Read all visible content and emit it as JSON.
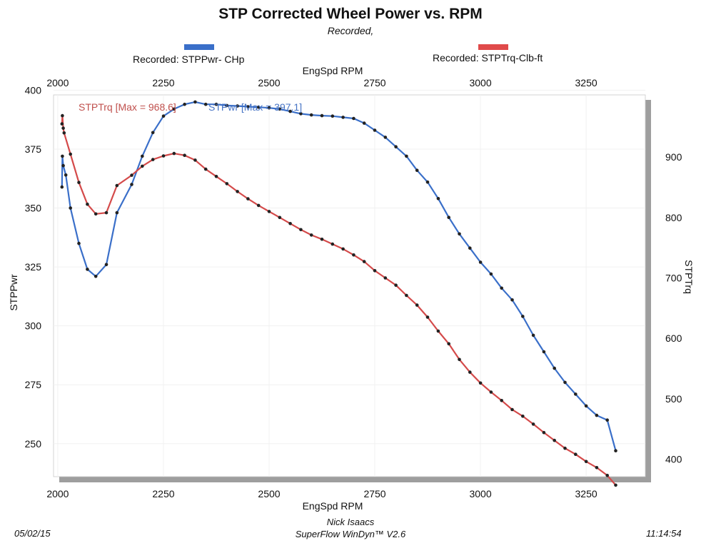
{
  "header": {
    "title": "STP Corrected Wheel Power vs. RPM",
    "subtitle": "Recorded,"
  },
  "legend": [
    {
      "label": "Recorded: STPPwr- CHp",
      "color": "#3a6fc9"
    },
    {
      "label": "Recorded: STPTrq-Clb-ft",
      "color": "#e04a4a"
    }
  ],
  "footer": {
    "date": "05/02/15",
    "author": "Nick Isaacs",
    "software": "SuperFlow WinDyn™ V2.6",
    "time": "11:14:54"
  },
  "chart_data": {
    "type": "line",
    "title": "STP Corrected Wheel Power vs. RPM",
    "xlabel": "EngSpd  RPM",
    "ylabel": "STPPwr",
    "y2label": "STPTrq",
    "xlim": [
      1990,
      3390
    ],
    "ylim": [
      236,
      398
    ],
    "y2lim": [
      371,
      1003
    ],
    "xticks": [
      "2000",
      "2250",
      "2500",
      "2750",
      "3000",
      "3250"
    ],
    "yticks": [
      "250",
      "275",
      "300",
      "325",
      "350",
      "375",
      "400"
    ],
    "y2ticks": [
      "400",
      "500",
      "600",
      "700",
      "800",
      "900"
    ],
    "annotations": {
      "trq": "STPTrq [Max = 968.6]",
      "pwr": "STPwr [Max = 397.1]"
    },
    "series": [
      {
        "name": "STPPwr",
        "axis": "left",
        "color": "#3a6fc9",
        "x": [
          2010,
          2011,
          2013,
          2019,
          2030,
          2050,
          2070,
          2090,
          2115,
          2140,
          2175,
          2200,
          2225,
          2250,
          2275,
          2300,
          2325,
          2350,
          2375,
          2400,
          2425,
          2450,
          2475,
          2500,
          2525,
          2550,
          2575,
          2600,
          2625,
          2650,
          2675,
          2700,
          2725,
          2750,
          2775,
          2800,
          2825,
          2850,
          2875,
          2900,
          2925,
          2950,
          2975,
          3000,
          3025,
          3050,
          3075,
          3100,
          3125,
          3150,
          3175,
          3200,
          3225,
          3250,
          3275,
          3300,
          3320
        ],
        "values": [
          358.9,
          372,
          368,
          364,
          350,
          335,
          324,
          321,
          326,
          348,
          360,
          372,
          382,
          389,
          392,
          394,
          395,
          394,
          394,
          393.5,
          393.3,
          393,
          392.8,
          392.5,
          392,
          391,
          390,
          389.5,
          389.2,
          389,
          388.5,
          388,
          386,
          383,
          380,
          376,
          372,
          366,
          361,
          354,
          346,
          339,
          333,
          327,
          322,
          316,
          311,
          304,
          296,
          289,
          282,
          276,
          271,
          266,
          262,
          260,
          247
        ]
      },
      {
        "name": "STPTrq",
        "axis": "right",
        "color": "#d44a4a",
        "x": [
          2010,
          2011,
          2013,
          2015,
          2030,
          2050,
          2070,
          2090,
          2115,
          2140,
          2175,
          2200,
          2225,
          2250,
          2275,
          2300,
          2325,
          2350,
          2375,
          2400,
          2425,
          2450,
          2475,
          2500,
          2525,
          2550,
          2575,
          2600,
          2625,
          2650,
          2675,
          2700,
          2725,
          2750,
          2775,
          2800,
          2825,
          2850,
          2875,
          2900,
          2925,
          2950,
          2975,
          3000,
          3025,
          3050,
          3075,
          3100,
          3125,
          3150,
          3175,
          3200,
          3225,
          3250,
          3275,
          3300,
          3320
        ],
        "values": [
          955,
          968.6,
          948,
          940,
          905,
          858,
          822,
          806,
          808,
          853,
          870,
          885,
          896,
          902,
          906,
          903,
          895,
          880,
          868,
          856,
          843,
          831,
          820,
          810,
          800,
          790,
          780,
          771,
          764,
          756,
          748,
          738,
          727,
          712,
          700,
          688,
          671,
          655,
          635,
          612,
          591,
          565,
          544,
          526,
          511,
          497,
          482,
          471,
          458,
          444,
          431,
          418,
          408,
          396,
          386,
          373,
          357
        ]
      }
    ]
  }
}
